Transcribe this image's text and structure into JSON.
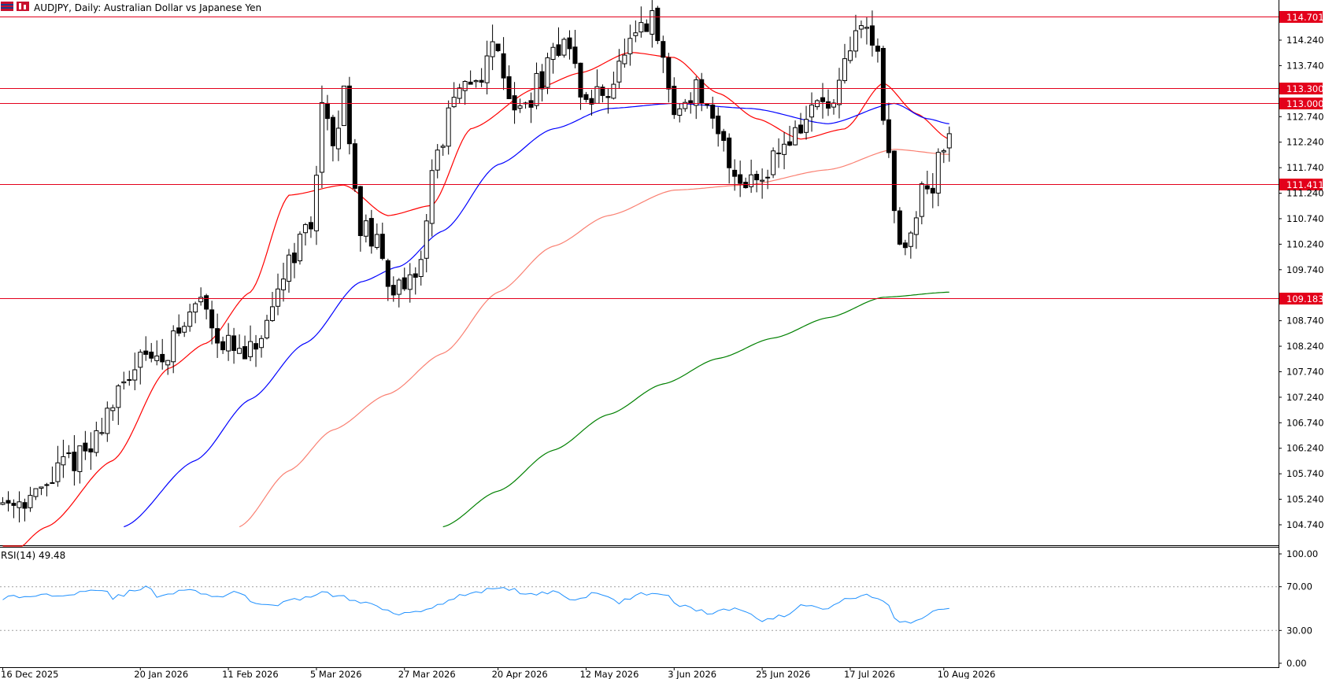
{
  "window": {
    "title": "AUDJPY, Daily:  Australian Dollar vs Japanese Yen",
    "indicator_label": "RSI(14) 49.48"
  },
  "chart_data": {
    "type": "candlestick",
    "symbol": "AUDJPY",
    "timeframe": "Daily",
    "price_axis": {
      "range": [
        104.24,
        115.04
      ],
      "ticks": [
        "114.240",
        "113.740",
        "112.740",
        "112.240",
        "111.740",
        "111.240",
        "110.740",
        "110.240",
        "109.740",
        "108.740",
        "108.240",
        "107.740",
        "107.240",
        "106.740",
        "106.240",
        "105.740",
        "105.240",
        "104.740"
      ]
    },
    "date_axis": {
      "labels": [
        {
          "label": "16 Dec 2025",
          "index": 0
        },
        {
          "label": "20 Jan 2026",
          "index": 25
        },
        {
          "label": "11 Feb 2026",
          "index": 41
        },
        {
          "label": "5 Mar 2026",
          "index": 57
        },
        {
          "label": "27 Mar 2026",
          "index": 73
        },
        {
          "label": "20 Apr 2026",
          "index": 90
        },
        {
          "label": "12 May 2026",
          "index": 106
        },
        {
          "label": "3 Jun 2026",
          "index": 122
        },
        {
          "label": "25 Jun 2026",
          "index": 138
        },
        {
          "label": "17 Jul 2026",
          "index": 154
        },
        {
          "label": "10 Aug 2026",
          "index": 171
        }
      ]
    },
    "levels": [
      {
        "value": 114.701,
        "label": "114.701"
      },
      {
        "value": 113.3,
        "label": "113.300"
      },
      {
        "value": 113.0,
        "label": "113.000"
      },
      {
        "value": 111.411,
        "label": "111.411"
      },
      {
        "value": 109.183,
        "label": "109.183"
      }
    ],
    "level_color": "#e3001b",
    "candle_up_color": "#ffffff",
    "candle_down_color": "#000000",
    "moving_averages": [
      {
        "color": "#ff0000",
        "anchors": [
          [
            -1,
            103.9
          ],
          [
            8,
            104.7
          ],
          [
            20,
            106.0
          ],
          [
            30,
            107.8
          ],
          [
            37,
            108.3
          ],
          [
            45,
            109.3
          ],
          [
            52,
            111.2
          ],
          [
            62,
            111.4
          ],
          [
            70,
            110.8
          ],
          [
            78,
            111.0
          ],
          [
            85,
            112.5
          ],
          [
            97,
            113.3
          ],
          [
            105,
            113.6
          ],
          [
            114,
            114.0
          ],
          [
            122,
            113.9
          ],
          [
            130,
            113.2
          ],
          [
            137,
            112.7
          ],
          [
            145,
            112.3
          ],
          [
            153,
            112.5
          ],
          [
            160,
            113.4
          ],
          [
            166,
            112.8
          ],
          [
            172,
            112.3
          ]
        ]
      },
      {
        "color": "#0000ff",
        "anchors": [
          [
            22,
            104.7
          ],
          [
            35,
            106.0
          ],
          [
            45,
            107.2
          ],
          [
            55,
            108.3
          ],
          [
            65,
            109.5
          ],
          [
            72,
            109.8
          ],
          [
            80,
            110.5
          ],
          [
            90,
            111.8
          ],
          [
            100,
            112.5
          ],
          [
            110,
            112.9
          ],
          [
            122,
            113.0
          ],
          [
            136,
            112.9
          ],
          [
            150,
            112.6
          ],
          [
            162,
            113.0
          ],
          [
            168,
            112.7
          ],
          [
            172,
            112.6
          ]
        ]
      },
      {
        "color": "#fa8072",
        "anchors": [
          [
            43,
            104.7
          ],
          [
            52,
            105.8
          ],
          [
            60,
            106.6
          ],
          [
            70,
            107.3
          ],
          [
            80,
            108.1
          ],
          [
            90,
            109.3
          ],
          [
            100,
            110.2
          ],
          [
            110,
            110.8
          ],
          [
            122,
            111.3
          ],
          [
            135,
            111.4
          ],
          [
            150,
            111.7
          ],
          [
            162,
            112.1
          ],
          [
            172,
            112.0
          ]
        ]
      },
      {
        "color": "#008000",
        "anchors": [
          [
            80,
            104.7
          ],
          [
            90,
            105.4
          ],
          [
            100,
            106.2
          ],
          [
            110,
            106.9
          ],
          [
            120,
            107.5
          ],
          [
            130,
            108.0
          ],
          [
            140,
            108.4
          ],
          [
            150,
            108.8
          ],
          [
            160,
            109.2
          ],
          [
            172,
            109.3
          ]
        ]
      }
    ],
    "rsi": {
      "period": 14,
      "current": 49.48,
      "levels": [
        70,
        30
      ],
      "axis_ticks": [
        "100.00",
        "70.00",
        "30.00",
        "0.00"
      ],
      "color": "#1e90ff"
    }
  }
}
